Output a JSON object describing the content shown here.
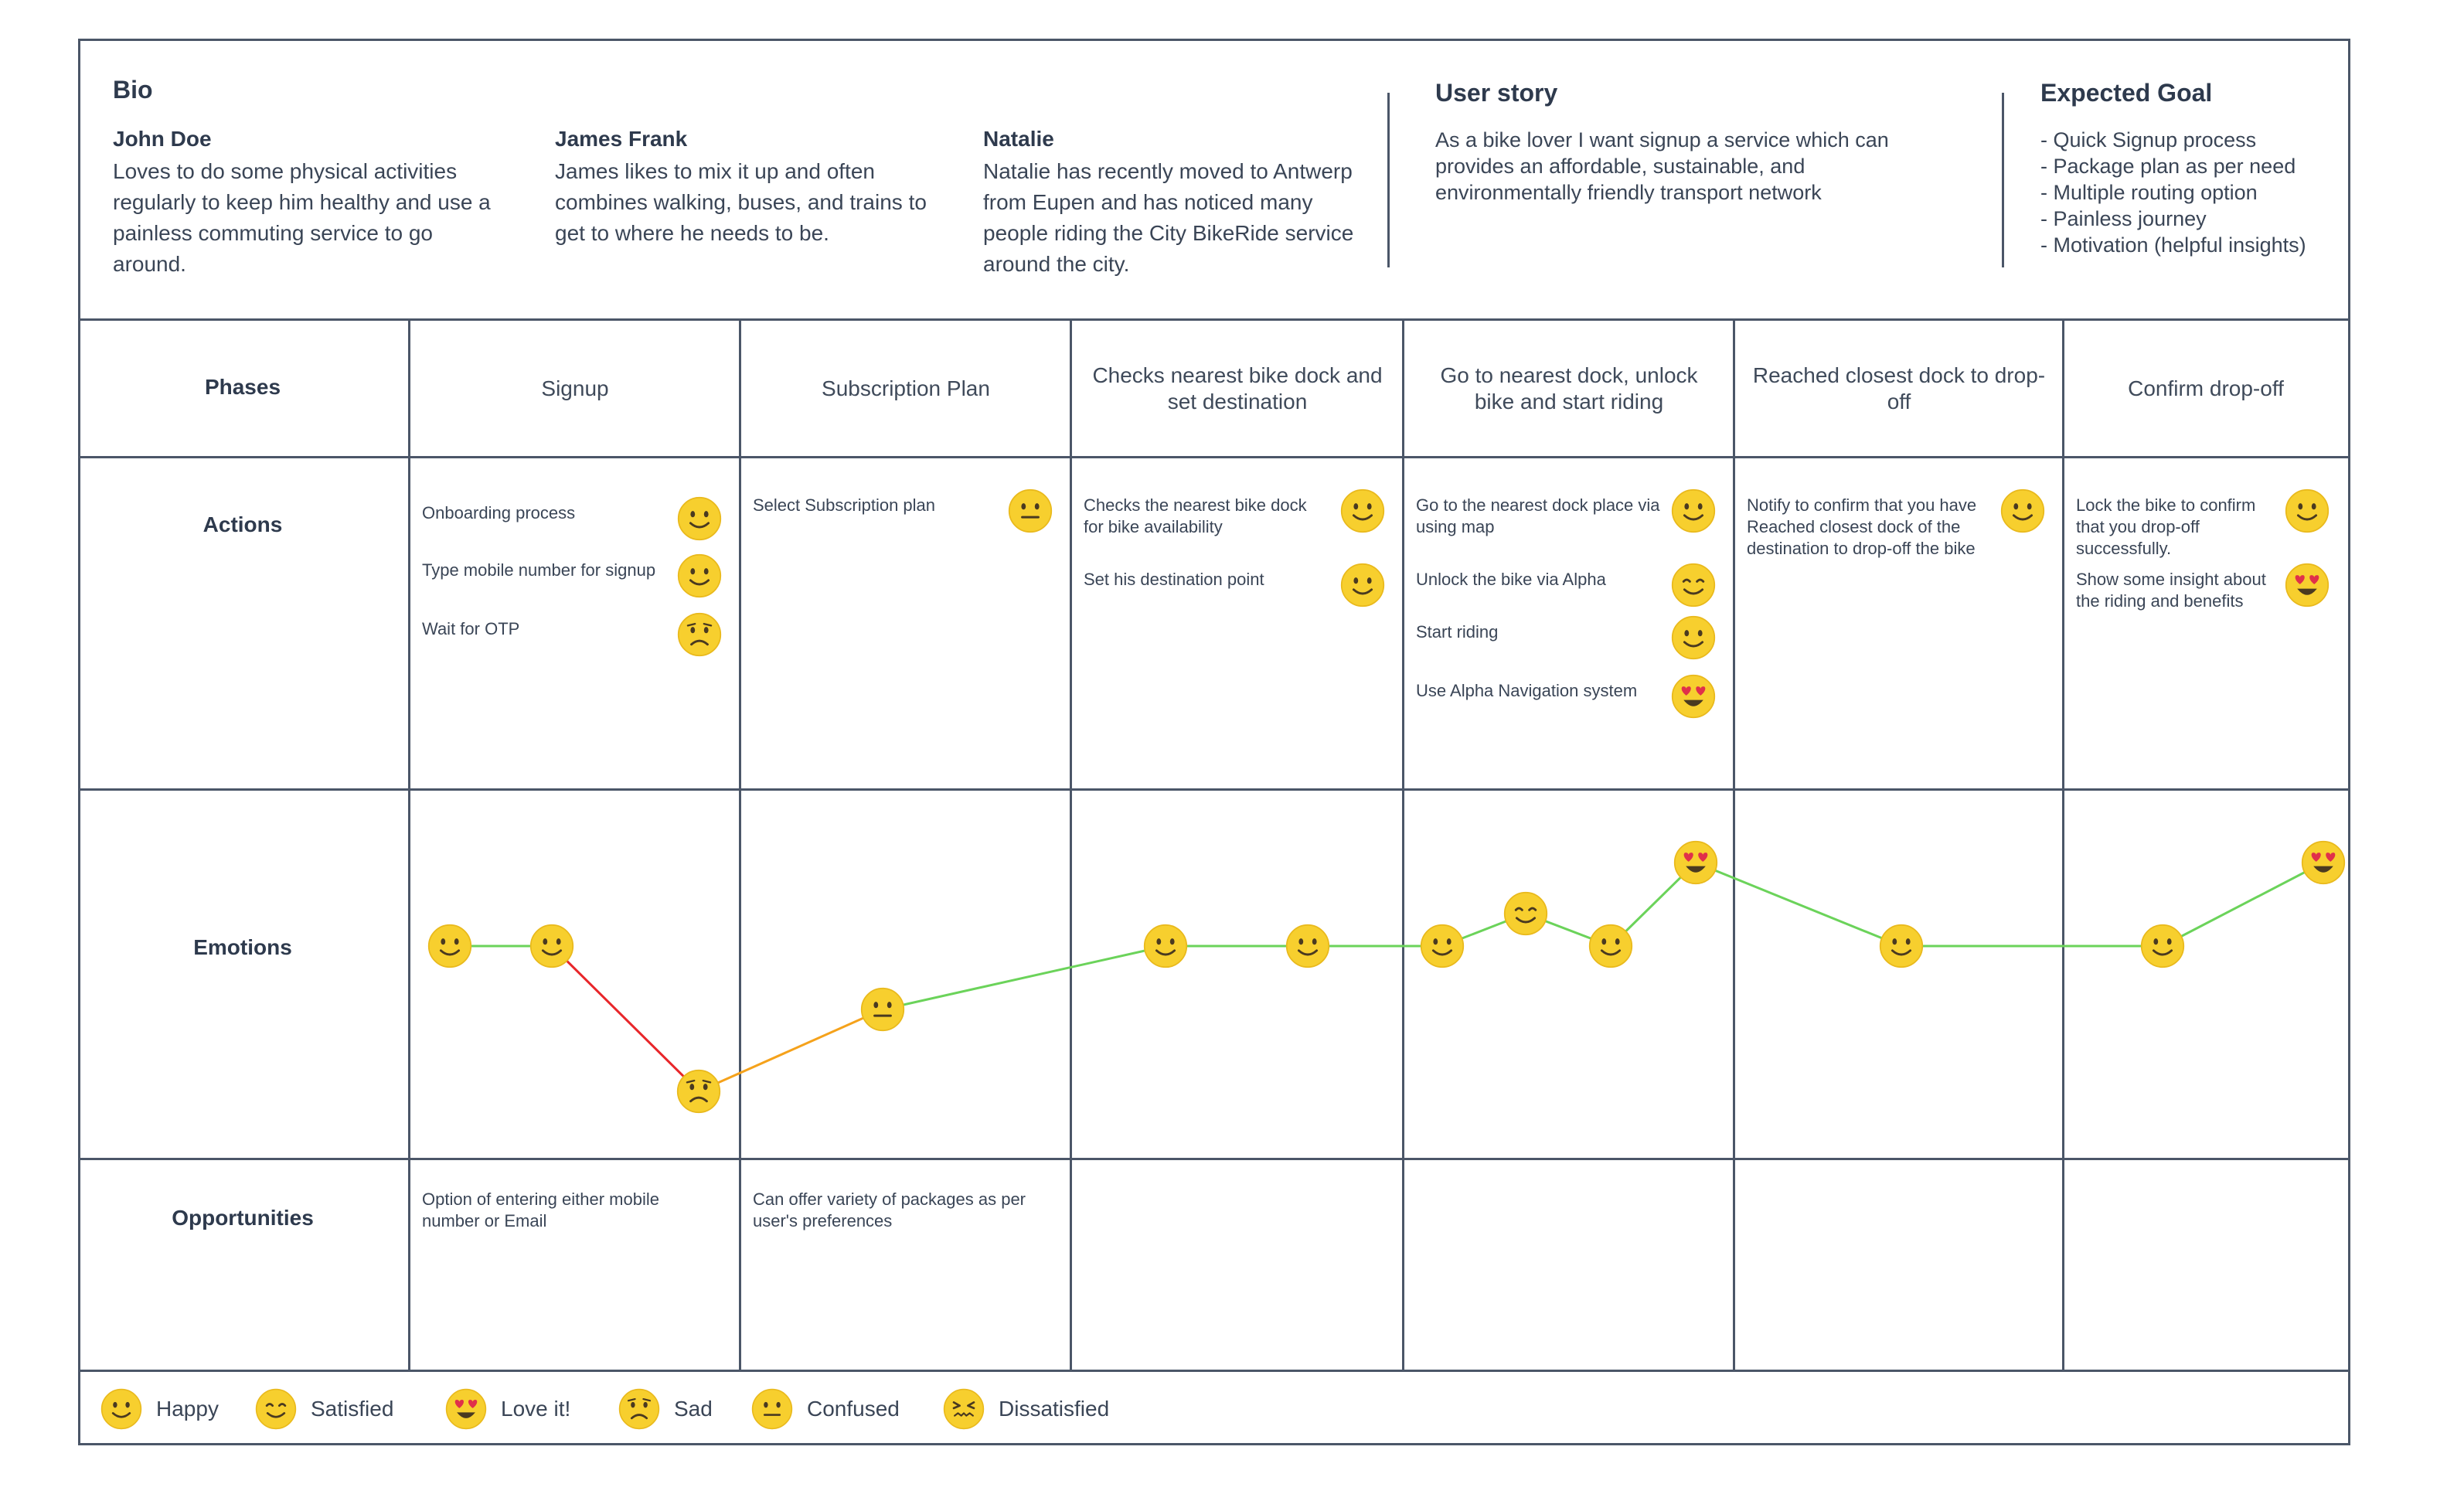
{
  "bio": {
    "title": "Bio",
    "personas": [
      {
        "name": "John Doe",
        "description": "Loves to do some physical activities regularly to keep him healthy and use a painless commuting service to go around."
      },
      {
        "name": "James Frank",
        "description": "James  likes to mix it up and often combines walking, buses, and trains to get to where he needs to be."
      },
      {
        "name": "Natalie",
        "description": "Natalie has recently moved to Antwerp from Eupen and has noticed many people riding the City BikeRide service around the city."
      }
    ]
  },
  "user_story": {
    "title": "User story",
    "text": "As a bike lover I want signup a service which can provides an affordable, sustainable, and environmentally friendly transport network"
  },
  "expected_goal": {
    "title": "Expected Goal",
    "items": [
      "Quick Signup process",
      "Package plan as per need",
      "Multiple routing option",
      "Painless journey",
      "Motivation (helpful insights)"
    ]
  },
  "row_labels": {
    "phases": "Phases",
    "actions": "Actions",
    "emotions": "Emotions",
    "opportunities": "Opportunities"
  },
  "phases": [
    "Signup",
    "Subscription Plan",
    "Checks nearest bike dock and set destination",
    "Go to nearest dock, unlock bike and start riding",
    "Reached closest dock to drop-off",
    "Confirm drop-off"
  ],
  "actions": [
    [
      {
        "text": "Onboarding process",
        "emotion": "happy"
      },
      {
        "text": "Type mobile number for signup",
        "emotion": "happy"
      },
      {
        "text": "Wait for OTP",
        "emotion": "sad"
      }
    ],
    [
      {
        "text": "Select Subscription plan",
        "emotion": "confused"
      }
    ],
    [
      {
        "text": "Checks the nearest bike dock for bike availability",
        "emotion": "happy"
      },
      {
        "text": "Set his destination point",
        "emotion": "happy"
      }
    ],
    [
      {
        "text": "Go to the nearest dock place via using map",
        "emotion": "happy"
      },
      {
        "text": "Unlock the bike via Alpha",
        "emotion": "satisfied"
      },
      {
        "text": "Start riding",
        "emotion": "happy"
      },
      {
        "text": "Use Alpha Navigation system",
        "emotion": "love"
      }
    ],
    [
      {
        "text": "Notify to confirm that you have Reached closest dock of the destination to drop-off the bike",
        "emotion": "happy"
      }
    ],
    [
      {
        "text": "Lock the bike to confirm that you drop-off successfully.",
        "emotion": "happy"
      },
      {
        "text": "Show some insight about the riding and benefits",
        "emotion": "love"
      }
    ]
  ],
  "emotion_curve": [
    {
      "emotion": "happy",
      "level": 2
    },
    {
      "emotion": "happy",
      "level": 2
    },
    {
      "emotion": "sad",
      "level": 0
    },
    {
      "emotion": "confused",
      "level": 1
    },
    {
      "emotion": "happy",
      "level": 2
    },
    {
      "emotion": "happy",
      "level": 2
    },
    {
      "emotion": "happy",
      "level": 2
    },
    {
      "emotion": "satisfied",
      "level": 2.5
    },
    {
      "emotion": "happy",
      "level": 2
    },
    {
      "emotion": "love",
      "level": 3
    },
    {
      "emotion": "happy",
      "level": 2
    },
    {
      "emotion": "happy",
      "level": 2
    },
    {
      "emotion": "love",
      "level": 3
    }
  ],
  "curve_colors": {
    "negative": "#e8262a",
    "recovering": "#f5a21b",
    "positive": "#6bd35a"
  },
  "opportunities": [
    "Option of entering either mobile number or Email",
    "Can offer variety of packages as per user's preferences",
    "",
    "",
    "",
    ""
  ],
  "legend": [
    {
      "emotion": "happy",
      "label": "Happy"
    },
    {
      "emotion": "satisfied",
      "label": "Satisfied"
    },
    {
      "emotion": "love",
      "label": "Love it!"
    },
    {
      "emotion": "sad",
      "label": "Sad"
    },
    {
      "emotion": "confused",
      "label": "Confused"
    },
    {
      "emotion": "dissatisfied",
      "label": "Dissatisfied"
    }
  ],
  "emoji_colors": {
    "face": "#f7cf2e",
    "rim": "#e9b91c",
    "feature": "#4a3a20",
    "heart": "#e0304a"
  }
}
